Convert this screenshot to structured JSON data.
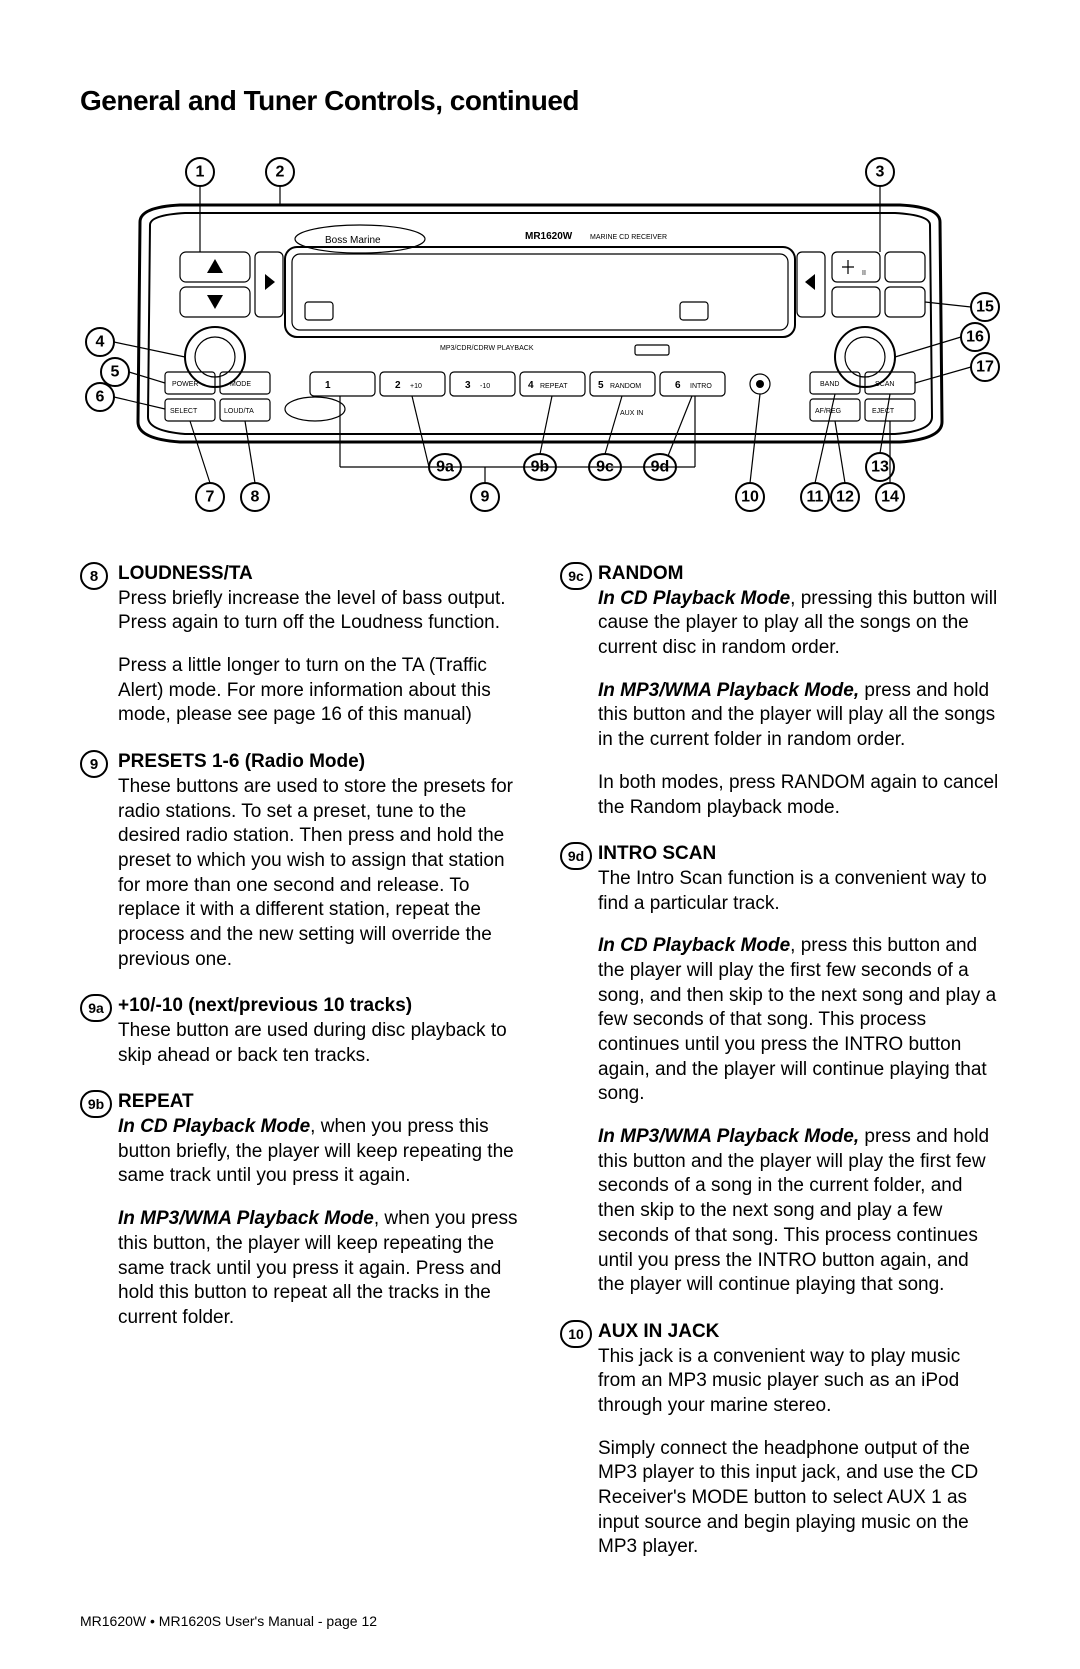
{
  "title": "General and Tuner Controls, continued",
  "footer": "MR1620W • MR1620S User's Manual - page 12",
  "diagram": {
    "model_label": "MR1620W",
    "model_suffix": "MARINE CD RECEIVER",
    "brand": "Boss Marine",
    "playback_text": "MP3/CDR/CDRW PLAYBACK",
    "callouts_top": [
      "1",
      "2",
      "3"
    ],
    "callouts_left": [
      "4",
      "5",
      "6"
    ],
    "callouts_right": [
      "15",
      "16",
      "17"
    ],
    "callouts_bottom": [
      "7",
      "8",
      "9a",
      "9",
      "9b",
      "9c",
      "9d",
      "10",
      "11",
      "12",
      "13",
      "14"
    ],
    "preset_buttons": [
      {
        "num": "1",
        "label": ""
      },
      {
        "num": "2",
        "label": "+10"
      },
      {
        "num": "3",
        "label": "-10"
      },
      {
        "num": "4",
        "label": "REPEAT"
      },
      {
        "num": "5",
        "label": "RANDOM"
      },
      {
        "num": "6",
        "label": "INTRO"
      }
    ],
    "left_buttons_row1": [
      "POWER",
      "MODE"
    ],
    "left_buttons_row2": [
      "SELECT",
      "LOUD/TA"
    ],
    "right_buttons_row1": [
      "BAND",
      "SCAN"
    ],
    "right_buttons_row2": [
      "AF/REG",
      "EJECT"
    ]
  },
  "left_col": [
    {
      "badge": "8",
      "title": "LOUDNESS/TA",
      "paras": [
        {
          "t": "Press briefly increase the level of bass output. Press again to turn off the Loudness function."
        },
        {
          "t": "Press a little longer to turn on the TA (Traffic Alert) mode. For more information about this mode, please see page 16 of this manual)"
        }
      ]
    },
    {
      "badge": "9",
      "title": "PRESETS 1-6 (Radio Mode)",
      "paras": [
        {
          "t": "These buttons are used to store the presets for radio stations. To set a preset, tune to the desired radio station. Then press and hold the preset to which you wish to assign that station for more than one second and release. To replace it with a different station, repeat the process and the new setting will override the previous one."
        }
      ]
    },
    {
      "badge": "9a",
      "title": "+10/-10 (next/previous 10 tracks)",
      "paras": [
        {
          "t": "These button are used during disc playback to skip ahead or back ten tracks."
        }
      ]
    },
    {
      "badge": "9b",
      "title": "REPEAT",
      "paras": [
        {
          "pre": "In CD Playback Mode",
          "t": ", when you press this button briefly, the player will keep repeating the same track until you press it again."
        },
        {
          "pre": "In MP3/WMA Playback Mode",
          "t": ", when you press this button, the player will keep repeating the same track until you press it again. Press and hold this button to repeat all the tracks in the current folder."
        }
      ]
    }
  ],
  "right_col": [
    {
      "badge": "9c",
      "title": "RANDOM",
      "paras": [
        {
          "pre": "In CD Playback Mode",
          "t": ", pressing this button will cause the player to play all the songs on the current disc in random order."
        },
        {
          "pre": "In MP3/WMA Playback Mode,",
          "t": " press and hold this button and the player will play all the songs in the current folder in random order."
        },
        {
          "t": "In both modes, press RANDOM again to cancel the Random playback mode."
        }
      ]
    },
    {
      "badge": "9d",
      "title": "INTRO SCAN",
      "paras": [
        {
          "t": "The Intro Scan function is a convenient way to find a particular track."
        },
        {
          "pre": "In CD Playback Mode",
          "t": ", press this button and the player will play the first few seconds of a song, and then skip to the next song and play a few seconds of that song. This process continues until you press the INTRO button again, and the player will continue playing that song."
        },
        {
          "pre": "In MP3/WMA Playback Mode,",
          "t": " press and hold this button and the player will play the first few seconds of a song in the current folder, and then skip to the next song and play a few seconds of that song. This process continues until you press the INTRO button again, and the player will continue playing that song."
        }
      ]
    },
    {
      "badge": "10",
      "title": "AUX IN JACK",
      "paras": [
        {
          "t": "This jack is a convenient way to play music from an MP3 music player such as an iPod through your marine stereo."
        },
        {
          "t": "Simply connect the headphone output of the MP3 player to this input jack, and use the CD Receiver's MODE button to select AUX 1 as input source and begin playing music on the MP3 player."
        }
      ]
    }
  ]
}
